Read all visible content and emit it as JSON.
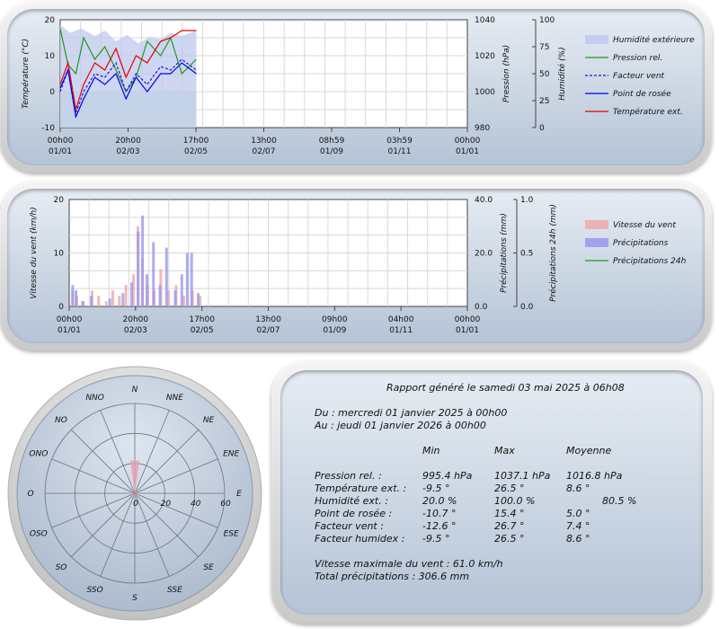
{
  "chart1": {
    "ylabel_left": "Température (°C)",
    "ylabel_mid": "Pression (hPa)",
    "ylabel_right": "Humidité (%)",
    "left_ticks": [
      "20",
      "10",
      "0",
      "-10"
    ],
    "mid_ticks": [
      "1040",
      "1020",
      "1000",
      "980"
    ],
    "right_ticks": [
      "100",
      "75",
      "50",
      "25",
      "0"
    ],
    "x_labels": [
      {
        "time": "00h00",
        "date": "01/01"
      },
      {
        "time": "20h00",
        "date": "02/03"
      },
      {
        "time": "17h00",
        "date": "02/05"
      },
      {
        "time": "13h00",
        "date": "02/07"
      },
      {
        "time": "08h59",
        "date": "01/09"
      },
      {
        "time": "03h59",
        "date": "01/11"
      },
      {
        "time": "00h00",
        "date": "01/01"
      }
    ],
    "legend": [
      "Humidité extérieure",
      "Pression rel.",
      "Facteur vent",
      "Point de rosée",
      "Température ext."
    ]
  },
  "chart2": {
    "ylabel_left": "Vitesse du vent (km/h)",
    "ylabel_mid": "Précipitations (mm)",
    "ylabel_right": "Précipitations 24h (mm)",
    "left_ticks": [
      "20",
      "10",
      "0"
    ],
    "mid_ticks": [
      "40.0",
      "20.0",
      "0.0"
    ],
    "right_ticks": [
      "1.0",
      "0.5",
      "0.0"
    ],
    "x_labels": [
      {
        "time": "00h00",
        "date": "01/01"
      },
      {
        "time": "20h00",
        "date": "02/03"
      },
      {
        "time": "17h00",
        "date": "02/05"
      },
      {
        "time": "13h00",
        "date": "02/07"
      },
      {
        "time": "09h00",
        "date": "01/09"
      },
      {
        "time": "04h00",
        "date": "01/11"
      },
      {
        "time": "00h00",
        "date": "01/01"
      }
    ],
    "legend": [
      "Vitesse du vent",
      "Précipitations",
      "Précipitations 24h"
    ]
  },
  "rose": {
    "directions": [
      "N",
      "NNE",
      "NE",
      "ENE",
      "E",
      "ESE",
      "SE",
      "SSE",
      "S",
      "SSO",
      "SO",
      "OSO",
      "O",
      "ONO",
      "NO",
      "NNO"
    ],
    "ring_labels": [
      "0",
      "20",
      "40",
      "60"
    ]
  },
  "report": {
    "title": "Rapport généré le samedi 03 mai 2025 à 06h08",
    "from": "Du : mercredi 01 janvier 2025 à 00h00",
    "to": "Au : jeudi 01 janvier 2026 à 00h00",
    "headers": [
      "Min",
      "Max",
      "Moyenne"
    ],
    "rows": [
      {
        "label": "Pression rel. :",
        "min": "995.4 hPa",
        "max": "1037.1 hPa",
        "avg": "1016.8 hPa"
      },
      {
        "label": "Température ext. :",
        "min": "-9.5 °",
        "max": "26.5 °",
        "avg": "8.6 °"
      },
      {
        "label": "Humidité ext. :",
        "min": "20.0 %",
        "max": "100.0 %",
        "avg": "80.5 %"
      },
      {
        "label": "Point de rosée :",
        "min": "-10.7 °",
        "max": "15.4 °",
        "avg": "5.0 °"
      },
      {
        "label": "Facteur vent :",
        "min": "-12.6 °",
        "max": "26.7 °",
        "avg": "7.4 °"
      },
      {
        "label": "Facteur humidex :",
        "min": "-9.5 °",
        "max": "26.5 °",
        "avg": "8.6 °"
      }
    ],
    "wind_max": "Vitesse maximale du vent : 61.0 km/h",
    "total_rain": "Total précipitations : 306.6 mm"
  },
  "chart_data": [
    {
      "type": "line",
      "xlim": [
        "2025-01-01",
        "2026-01-01"
      ],
      "ylim_temperature": [
        -10,
        20
      ],
      "ylim_pressure": [
        980,
        1040
      ],
      "ylim_humidity": [
        0,
        100
      ],
      "series": [
        {
          "name": "Humidité extérieure",
          "axis": "humidity",
          "color": "#bfc8ee",
          "x": [
            "2025-01-01",
            "2025-01-10",
            "2025-01-20",
            "2025-02-01",
            "2025-02-10",
            "2025-02-20",
            "2025-03-02",
            "2025-03-12",
            "2025-03-22",
            "2025-04-01",
            "2025-04-10",
            "2025-04-20",
            "2025-05-03"
          ],
          "values": [
            95,
            88,
            92,
            85,
            90,
            80,
            86,
            78,
            84,
            82,
            88,
            85,
            90
          ]
        },
        {
          "name": "Pression rel.",
          "axis": "pressure",
          "color": "#1a9a1a",
          "x": [
            "2025-01-01",
            "2025-01-08",
            "2025-01-15",
            "2025-01-22",
            "2025-02-01",
            "2025-02-10",
            "2025-02-20",
            "2025-03-01",
            "2025-03-10",
            "2025-03-20",
            "2025-04-01",
            "2025-04-10",
            "2025-04-20",
            "2025-05-03"
          ],
          "values": [
            1035,
            1015,
            1010,
            1030,
            1018,
            1025,
            1012,
            1000,
            1008,
            1028,
            1020,
            1030,
            1010,
            1018
          ]
        },
        {
          "name": "Facteur vent",
          "axis": "temperature",
          "color": "#1a1ad0",
          "x": [
            "2025-01-01",
            "2025-01-08",
            "2025-01-15",
            "2025-01-22",
            "2025-02-01",
            "2025-02-10",
            "2025-02-20",
            "2025-03-01",
            "2025-03-10",
            "2025-03-20",
            "2025-04-01",
            "2025-04-10",
            "2025-04-20",
            "2025-05-03"
          ],
          "values": [
            0,
            6,
            -6,
            0,
            5,
            4,
            8,
            0,
            5,
            2,
            7,
            6,
            9,
            6
          ]
        },
        {
          "name": "Point de rosée",
          "axis": "temperature",
          "color": "#0000ee",
          "x": [
            "2025-01-01",
            "2025-01-08",
            "2025-01-15",
            "2025-01-22",
            "2025-02-01",
            "2025-02-10",
            "2025-02-20",
            "2025-03-01",
            "2025-03-10",
            "2025-03-20",
            "2025-04-01",
            "2025-04-10",
            "2025-04-20",
            "2025-05-03"
          ],
          "values": [
            1,
            6,
            -7,
            -2,
            4,
            2,
            5,
            -2,
            4,
            0,
            5,
            5,
            8,
            5
          ]
        },
        {
          "name": "Température ext.",
          "axis": "temperature",
          "color": "#e00000",
          "x": [
            "2025-01-01",
            "2025-01-08",
            "2025-01-15",
            "2025-01-22",
            "2025-02-01",
            "2025-02-10",
            "2025-02-20",
            "2025-03-01",
            "2025-03-10",
            "2025-03-20",
            "2025-04-01",
            "2025-04-10",
            "2025-04-20",
            "2025-05-03"
          ],
          "values": [
            2,
            8,
            -5,
            2,
            8,
            6,
            12,
            4,
            10,
            8,
            14,
            15,
            17,
            17
          ]
        }
      ]
    },
    {
      "type": "bar",
      "xlim": [
        "2025-01-01",
        "2026-01-01"
      ],
      "ylim_wind": [
        0,
        20
      ],
      "ylim_rain": [
        0,
        40
      ],
      "ylim_rain24": [
        0,
        1
      ],
      "series": [
        {
          "name": "Vitesse du vent",
          "axis": "wind",
          "color": "#f0a8a8",
          "x": [
            "2025-01-04",
            "2025-01-08",
            "2025-01-14",
            "2025-01-22",
            "2025-01-28",
            "2025-02-04",
            "2025-02-10",
            "2025-02-16",
            "2025-02-22",
            "2025-03-01",
            "2025-03-05",
            "2025-03-09",
            "2025-03-14",
            "2025-03-20",
            "2025-03-26",
            "2025-04-02",
            "2025-04-09",
            "2025-04-16",
            "2025-04-24",
            "2025-05-01"
          ],
          "values": [
            3,
            2,
            1,
            3,
            2,
            1,
            3,
            2,
            4,
            6,
            15,
            9,
            4,
            3,
            7,
            3,
            4,
            2,
            3,
            2
          ]
        },
        {
          "name": "Précipitations",
          "axis": "rain",
          "color": "#9898ee",
          "x": [
            "2025-01-03",
            "2025-01-06",
            "2025-01-12",
            "2025-01-20",
            "2025-02-06",
            "2025-02-18",
            "2025-02-26",
            "2025-03-04",
            "2025-03-08",
            "2025-03-12",
            "2025-03-18",
            "2025-03-24",
            "2025-03-30",
            "2025-04-07",
            "2025-04-13",
            "2025-04-18",
            "2025-04-22",
            "2025-04-28"
          ],
          "values": [
            8,
            6,
            2,
            4,
            3,
            5,
            9,
            28,
            34,
            12,
            24,
            8,
            22,
            6,
            12,
            20,
            20,
            5
          ]
        },
        {
          "name": "Précipitations 24h",
          "axis": "rain24",
          "color": "#1a9a1a",
          "x": [],
          "values": []
        }
      ]
    },
    {
      "type": "bar",
      "subtype": "wind-rose",
      "directions": [
        "N",
        "NNE",
        "NE",
        "ENE",
        "E",
        "ESE",
        "SE",
        "SSE",
        "S",
        "SSO",
        "SO",
        "OSO",
        "O",
        "ONO",
        "NO",
        "NNO"
      ],
      "values": [
        22,
        2,
        1,
        2,
        3,
        3,
        2,
        2,
        2,
        2,
        2,
        2,
        3,
        2,
        1,
        2
      ],
      "rlim": [
        0,
        60
      ],
      "color": "#e8a0b0"
    }
  ]
}
